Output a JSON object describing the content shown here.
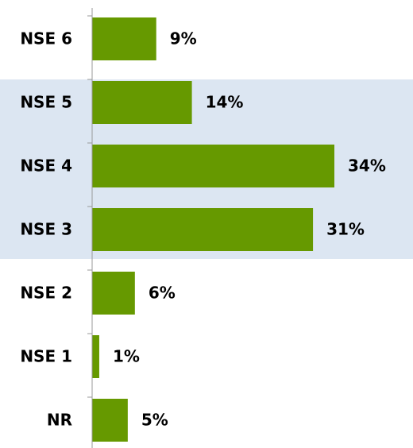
{
  "chart_data": {
    "type": "bar",
    "orientation": "horizontal",
    "categories": [
      "NSE 6",
      "NSE 5",
      "NSE 4",
      "NSE 3",
      "NSE 2",
      "NSE 1",
      "NR"
    ],
    "values": [
      9,
      14,
      34,
      31,
      6,
      1,
      5
    ],
    "value_labels": [
      "9%",
      "14%",
      "34%",
      "31%",
      "6%",
      "1%",
      "5%"
    ],
    "color": "#669900"
  }
}
